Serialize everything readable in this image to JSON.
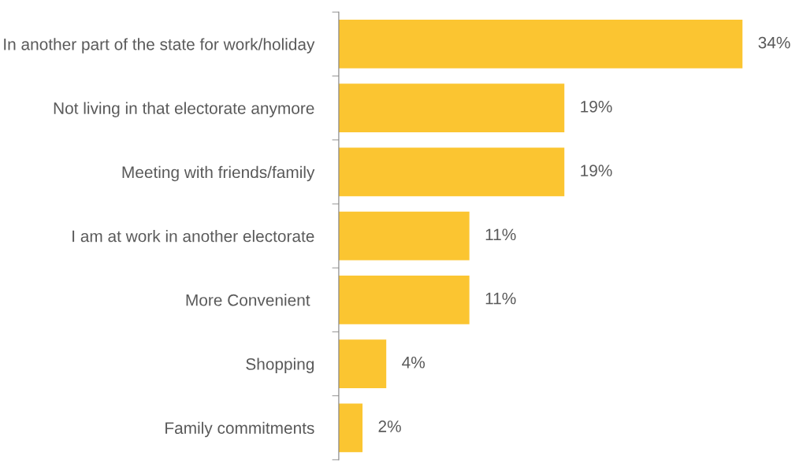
{
  "chart_data": {
    "type": "bar",
    "orientation": "horizontal",
    "categories": [
      "In another part of the state for work/holiday",
      "Not living in that electorate anymore",
      "Meeting with friends/family",
      "I am at work in another electorate",
      "More Convenient ",
      "Shopping",
      "Family commitments"
    ],
    "values": [
      34,
      19,
      19,
      11,
      11,
      4,
      2
    ],
    "value_labels": [
      "34%",
      "19%",
      "19%",
      "11%",
      "11%",
      "4%",
      "2%"
    ],
    "color": "#fbc531",
    "grid": false,
    "legend": false
  }
}
